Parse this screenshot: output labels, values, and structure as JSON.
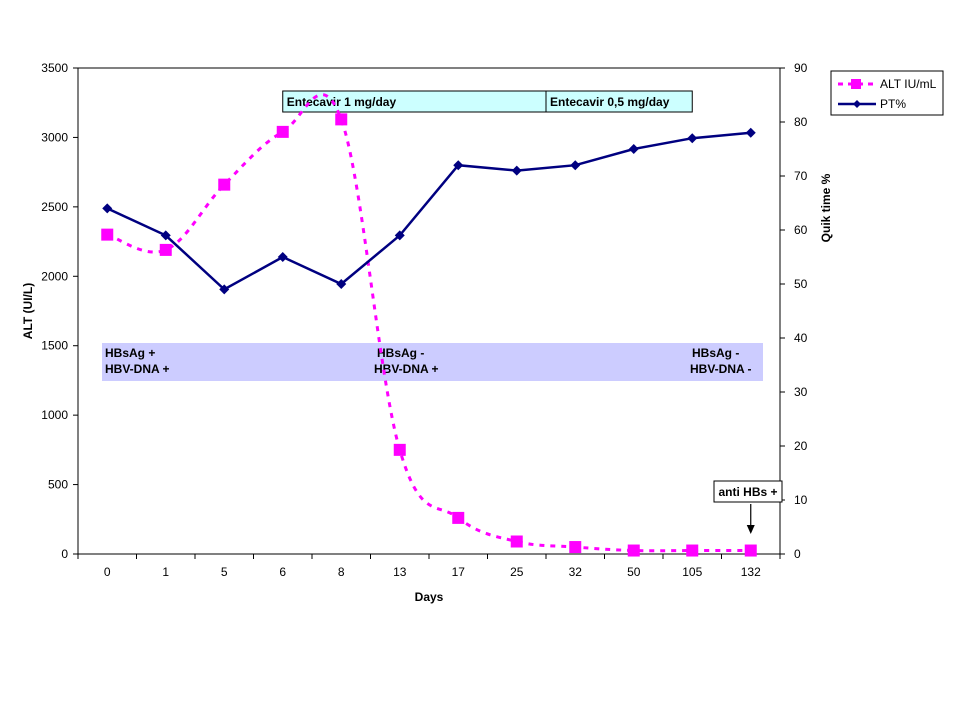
{
  "chart_data": {
    "type": "line",
    "categories": [
      "0",
      "1",
      "5",
      "6",
      "8",
      "13",
      "17",
      "25",
      "32",
      "50",
      "105",
      "132"
    ],
    "xlabel": "Days",
    "ylabel_left": "ALT (UI/L)",
    "ylabel_right": "Quik time %",
    "ylim_left": [
      0,
      3500
    ],
    "ylim_right": [
      0,
      90
    ],
    "yticks_left": [
      "0",
      "500",
      "1000",
      "1500",
      "2000",
      "2500",
      "3000",
      "3500"
    ],
    "yticks_right": [
      "0",
      "10",
      "20",
      "30",
      "40",
      "50",
      "60",
      "70",
      "80",
      "90"
    ],
    "series": [
      {
        "name": "ALT IU/mL",
        "axis": "left",
        "style": "dashed-smooth",
        "marker": "square",
        "color": "#ff00ff",
        "values": [
          2300,
          2190,
          2660,
          3040,
          3130,
          750,
          260,
          90,
          50,
          25,
          25,
          25
        ]
      },
      {
        "name": "PT%",
        "axis": "right",
        "style": "solid",
        "marker": "diamond",
        "color": "#000080",
        "values": [
          64,
          59,
          49,
          55,
          50,
          59,
          72,
          71,
          72,
          75,
          77,
          78
        ]
      }
    ],
    "legend_position": "top-right",
    "grid": false,
    "treatment_bars": {
      "color": "#ccffff",
      "items": [
        {
          "label": "Entecavir 1 mg/day",
          "from_category": 3.5,
          "to_category": 8
        },
        {
          "label": "Entecavir 0,5 mg/day",
          "from_category": 8,
          "to_category": 10.5
        }
      ]
    },
    "status_band": {
      "color": "#ccccff",
      "items": [
        {
          "line1": "HBsAg +",
          "line2": "HBV-DNA +"
        },
        {
          "line1": "HBsAg -",
          "line2": "HBV-DNA +"
        },
        {
          "line1": "HBsAg -",
          "line2": "HBV-DNA -"
        }
      ]
    },
    "annotation": {
      "text": "anti HBs +",
      "category_index": 11
    }
  }
}
